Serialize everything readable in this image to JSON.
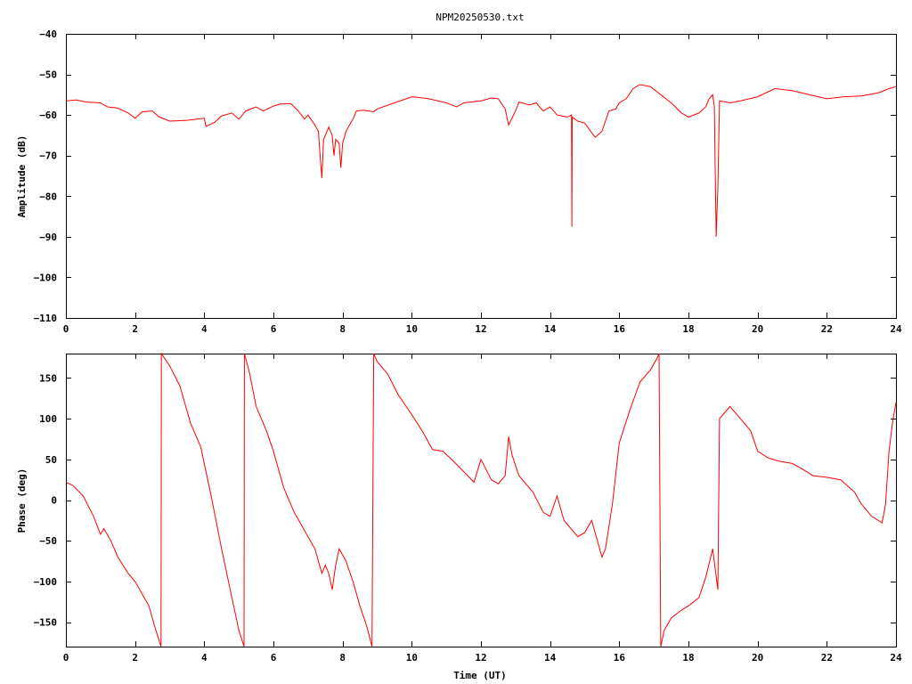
{
  "title": "NPM20250530.txt",
  "chart_data": [
    {
      "type": "line",
      "name": "amplitude-panel",
      "ylabel": "Amplitude (dB)",
      "xlabel": "",
      "xlim": [
        0,
        24
      ],
      "ylim": [
        -110,
        -40
      ],
      "x_ticks": [
        0,
        2,
        4,
        6,
        8,
        10,
        12,
        14,
        16,
        18,
        20,
        22,
        24
      ],
      "y_ticks": [
        -110,
        -100,
        -90,
        -80,
        -70,
        -60,
        -50,
        -40
      ],
      "grid": false,
      "series": [
        {
          "color": "#ff0000",
          "points": [
            [
              0,
              -56.5
            ],
            [
              0.3,
              -56.3
            ],
            [
              0.6,
              -56.8
            ],
            [
              1.0,
              -57.0
            ],
            [
              1.2,
              -58.0
            ],
            [
              1.5,
              -58.3
            ],
            [
              1.8,
              -59.5
            ],
            [
              2.0,
              -60.8
            ],
            [
              2.2,
              -59.2
            ],
            [
              2.5,
              -59.0
            ],
            [
              2.7,
              -60.5
            ],
            [
              3.0,
              -61.5
            ],
            [
              3.5,
              -61.3
            ],
            [
              4.0,
              -60.8
            ],
            [
              4.05,
              -62.8
            ],
            [
              4.3,
              -61.8
            ],
            [
              4.5,
              -60.2
            ],
            [
              4.8,
              -59.5
            ],
            [
              5.0,
              -61.0
            ],
            [
              5.2,
              -59.0
            ],
            [
              5.5,
              -58.0
            ],
            [
              5.7,
              -59.0
            ],
            [
              6.0,
              -57.8
            ],
            [
              6.2,
              -57.3
            ],
            [
              6.5,
              -57.2
            ],
            [
              6.7,
              -58.8
            ],
            [
              6.9,
              -61.0
            ],
            [
              7.0,
              -60.0
            ],
            [
              7.2,
              -62.5
            ],
            [
              7.3,
              -64.0
            ],
            [
              7.35,
              -70.0
            ],
            [
              7.4,
              -75.5
            ],
            [
              7.45,
              -66.0
            ],
            [
              7.6,
              -63.0
            ],
            [
              7.7,
              -65.0
            ],
            [
              7.75,
              -70.0
            ],
            [
              7.8,
              -66.0
            ],
            [
              7.9,
              -67.0
            ],
            [
              7.95,
              -73.0
            ],
            [
              8.0,
              -67.0
            ],
            [
              8.1,
              -64.0
            ],
            [
              8.2,
              -62.5
            ],
            [
              8.3,
              -61.0
            ],
            [
              8.4,
              -59.0
            ],
            [
              8.6,
              -58.8
            ],
            [
              8.9,
              -59.2
            ],
            [
              9.0,
              -58.5
            ],
            [
              9.5,
              -57.0
            ],
            [
              10.0,
              -55.5
            ],
            [
              10.5,
              -56.0
            ],
            [
              11.0,
              -57.0
            ],
            [
              11.3,
              -58.0
            ],
            [
              11.5,
              -57.0
            ],
            [
              12.0,
              -56.5
            ],
            [
              12.3,
              -55.8
            ],
            [
              12.5,
              -56.0
            ],
            [
              12.7,
              -58.5
            ],
            [
              12.8,
              -62.5
            ],
            [
              13.0,
              -59.0
            ],
            [
              13.1,
              -56.8
            ],
            [
              13.4,
              -57.5
            ],
            [
              13.6,
              -57.0
            ],
            [
              13.8,
              -59.0
            ],
            [
              14.0,
              -58.0
            ],
            [
              14.2,
              -60.0
            ],
            [
              14.5,
              -60.5
            ],
            [
              14.62,
              -60.0
            ],
            [
              14.63,
              -87.5
            ],
            [
              14.64,
              -60.5
            ],
            [
              14.8,
              -61.5
            ],
            [
              15.0,
              -62.0
            ],
            [
              15.3,
              -65.5
            ],
            [
              15.5,
              -64.0
            ],
            [
              15.7,
              -59.0
            ],
            [
              15.9,
              -58.5
            ],
            [
              16.0,
              -57.0
            ],
            [
              16.2,
              -56.0
            ],
            [
              16.4,
              -53.5
            ],
            [
              16.6,
              -52.5
            ],
            [
              16.9,
              -53.0
            ],
            [
              17.2,
              -55.0
            ],
            [
              17.5,
              -57.0
            ],
            [
              17.8,
              -59.5
            ],
            [
              18.0,
              -60.5
            ],
            [
              18.3,
              -59.5
            ],
            [
              18.5,
              -58.0
            ],
            [
              18.6,
              -56.0
            ],
            [
              18.7,
              -55.0
            ],
            [
              18.75,
              -58.0
            ],
            [
              18.8,
              -90.0
            ],
            [
              18.85,
              -78.0
            ],
            [
              18.9,
              -56.5
            ],
            [
              19.2,
              -57.0
            ],
            [
              19.5,
              -56.5
            ],
            [
              20.0,
              -55.5
            ],
            [
              20.5,
              -53.5
            ],
            [
              21.0,
              -54.0
            ],
            [
              21.5,
              -55.0
            ],
            [
              22.0,
              -56.0
            ],
            [
              22.5,
              -55.5
            ],
            [
              23.0,
              -55.3
            ],
            [
              23.5,
              -54.5
            ],
            [
              23.8,
              -53.5
            ],
            [
              24.0,
              -53.0
            ]
          ]
        }
      ]
    },
    {
      "type": "line",
      "name": "phase-panel",
      "ylabel": "Phase (deg)",
      "xlabel": "Time (UT)",
      "xlim": [
        0,
        24
      ],
      "ylim": [
        -180,
        180
      ],
      "x_ticks": [
        0,
        2,
        4,
        6,
        8,
        10,
        12,
        14,
        16,
        18,
        20,
        22,
        24
      ],
      "y_ticks": [
        -150,
        -100,
        -50,
        0,
        50,
        100,
        150
      ],
      "grid": false,
      "series": [
        {
          "color": "#ff0000",
          "points": [
            [
              0,
              22
            ],
            [
              0.2,
              18
            ],
            [
              0.5,
              5
            ],
            [
              0.8,
              -20
            ],
            [
              1.0,
              -42
            ],
            [
              1.1,
              -35
            ],
            [
              1.3,
              -50
            ],
            [
              1.5,
              -70
            ],
            [
              1.8,
              -90
            ],
            [
              2.0,
              -100
            ],
            [
              2.2,
              -115
            ],
            [
              2.4,
              -130
            ],
            [
              2.6,
              -160
            ],
            [
              2.75,
              -180
            ],
            [
              2.76,
              180
            ],
            [
              3.0,
              165
            ],
            [
              3.3,
              140
            ],
            [
              3.6,
              95
            ],
            [
              3.9,
              65
            ],
            [
              4.0,
              45
            ],
            [
              4.2,
              5
            ],
            [
              4.5,
              -60
            ],
            [
              4.8,
              -120
            ],
            [
              5.0,
              -160
            ],
            [
              5.15,
              -180
            ],
            [
              5.16,
              180
            ],
            [
              5.3,
              158
            ],
            [
              5.5,
              115
            ],
            [
              5.8,
              85
            ],
            [
              6.0,
              60
            ],
            [
              6.3,
              15
            ],
            [
              6.6,
              -15
            ],
            [
              6.8,
              -30
            ],
            [
              7.0,
              -45
            ],
            [
              7.2,
              -60
            ],
            [
              7.3,
              -75
            ],
            [
              7.4,
              -90
            ],
            [
              7.5,
              -80
            ],
            [
              7.6,
              -90
            ],
            [
              7.7,
              -110
            ],
            [
              7.8,
              -80
            ],
            [
              7.9,
              -60
            ],
            [
              8.1,
              -75
            ],
            [
              8.3,
              -100
            ],
            [
              8.5,
              -130
            ],
            [
              8.7,
              -155
            ],
            [
              8.85,
              -180
            ],
            [
              8.9,
              180
            ],
            [
              9.0,
              170
            ],
            [
              9.3,
              155
            ],
            [
              9.6,
              130
            ],
            [
              10.0,
              105
            ],
            [
              10.3,
              85
            ],
            [
              10.6,
              62
            ],
            [
              10.9,
              60
            ],
            [
              11.2,
              48
            ],
            [
              11.5,
              35
            ],
            [
              11.8,
              22
            ],
            [
              12.0,
              50
            ],
            [
              12.3,
              25
            ],
            [
              12.5,
              20
            ],
            [
              12.7,
              30
            ],
            [
              12.8,
              78
            ],
            [
              12.9,
              55
            ],
            [
              13.1,
              30
            ],
            [
              13.5,
              10
            ],
            [
              13.8,
              -15
            ],
            [
              14.0,
              -20
            ],
            [
              14.2,
              5
            ],
            [
              14.4,
              -25
            ],
            [
              14.6,
              -35
            ],
            [
              14.8,
              -45
            ],
            [
              15.0,
              -40
            ],
            [
              15.2,
              -25
            ],
            [
              15.3,
              -40
            ],
            [
              15.5,
              -70
            ],
            [
              15.6,
              -60
            ],
            [
              15.8,
              -5
            ],
            [
              16.0,
              70
            ],
            [
              16.3,
              110
            ],
            [
              16.6,
              145
            ],
            [
              16.9,
              160
            ],
            [
              17.1,
              175
            ],
            [
              17.15,
              180
            ],
            [
              17.2,
              -180
            ],
            [
              17.3,
              -160
            ],
            [
              17.5,
              -145
            ],
            [
              17.8,
              -135
            ],
            [
              18.0,
              -130
            ],
            [
              18.3,
              -120
            ],
            [
              18.5,
              -95
            ],
            [
              18.7,
              -60
            ],
            [
              18.85,
              -110
            ],
            [
              18.9,
              100
            ],
            [
              19.0,
              105
            ],
            [
              19.2,
              115
            ],
            [
              19.5,
              100
            ],
            [
              19.8,
              85
            ],
            [
              20.0,
              60
            ],
            [
              20.3,
              52
            ],
            [
              20.6,
              48
            ],
            [
              21.0,
              45
            ],
            [
              21.3,
              38
            ],
            [
              21.6,
              30
            ],
            [
              22.0,
              28
            ],
            [
              22.4,
              25
            ],
            [
              22.8,
              10
            ],
            [
              23.0,
              -5
            ],
            [
              23.3,
              -20
            ],
            [
              23.6,
              -28
            ],
            [
              23.7,
              -5
            ],
            [
              23.8,
              60
            ],
            [
              23.9,
              95
            ],
            [
              24.0,
              120
            ]
          ]
        }
      ]
    }
  ]
}
